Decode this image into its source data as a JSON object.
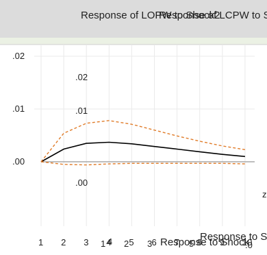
{
  "header": {
    "title_back": "Response of LOPW to Shock2",
    "title_front": "Response of LCPW to Shock"
  },
  "ghost_labels": {
    "y_top": ".02",
    "y_mid": ".01",
    "y_bottom": ".00",
    "bottom_text_1": "Response to Shock",
    "bottom_text_2": "Response to Shock",
    "right_glyph": "z",
    "dot_glyph": ".0"
  },
  "colors": {
    "header_band": "#dcdcdc",
    "panel_gutter": "#ebf1e4",
    "impulse_line": "#000000",
    "confidence_band": "#e07b28",
    "zero_line": "#a8a8a8",
    "grid": "#eaeaea"
  },
  "chart_data": {
    "type": "line",
    "title": "Response of LOPW to Shock2",
    "x": [
      1,
      2,
      3,
      4,
      5,
      6,
      7,
      8,
      9,
      10
    ],
    "x_tick_labels": [
      "1",
      "2",
      "3",
      "4",
      "5",
      "6",
      "7",
      "8",
      "9",
      "10"
    ],
    "y_tick_labels": [
      ".02",
      ".01",
      ".00"
    ],
    "ylim": [
      -0.006,
      0.025
    ],
    "grid": true,
    "series": [
      {
        "style": "solid",
        "color": "#000000",
        "values": [
          0.0,
          0.0024,
          0.0035,
          0.0037,
          0.0034,
          0.0029,
          0.0024,
          0.0019,
          0.0014,
          0.001
        ]
      },
      {
        "style": "dashed",
        "color": "#e07b28",
        "values": [
          0.0,
          0.0054,
          0.0073,
          0.0078,
          0.0071,
          0.006,
          0.0049,
          0.0039,
          0.003,
          0.0023
        ]
      },
      {
        "style": "dashed",
        "color": "#e07b28",
        "values": [
          0.0,
          -0.0005,
          -0.0006,
          -0.0004,
          -0.0003,
          -0.0003,
          -0.0003,
          -0.0003,
          -0.0003,
          -0.0004
        ]
      }
    ]
  }
}
